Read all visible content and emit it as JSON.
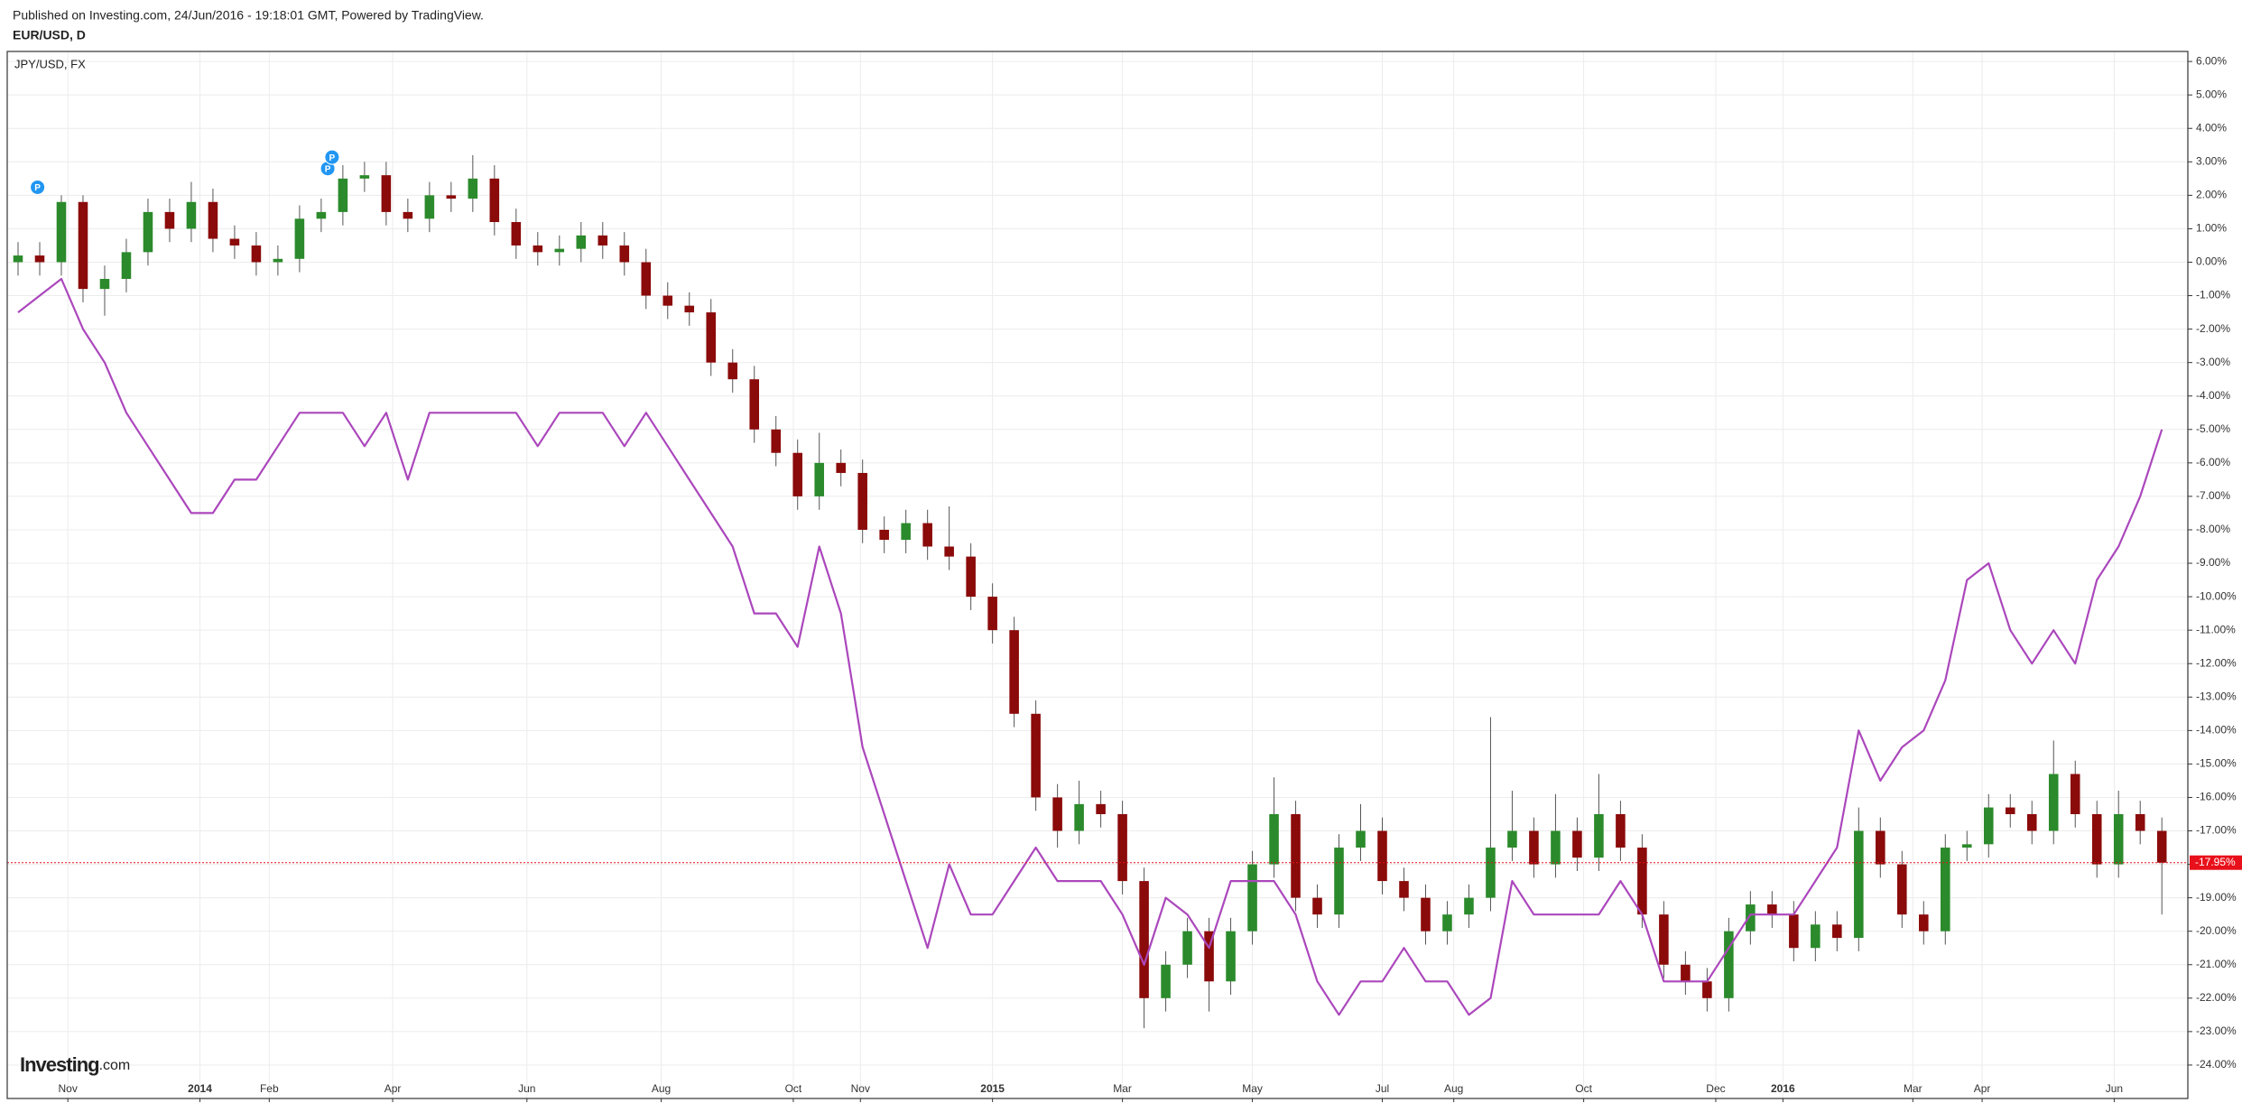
{
  "header": {
    "published": "Published on Investing.com, 24/Jun/2016 - 19:18:01 GMT, Powered by TradingView.",
    "symbol": "EUR/USD, D"
  },
  "logo": {
    "brand": "Investing",
    "suffix": ".com"
  },
  "chart_data": {
    "type": "candlestick",
    "open": [
      0.0,
      0.2,
      0.0,
      1.8,
      -0.8,
      -0.5,
      0.3,
      1.5,
      1.0,
      1.8,
      0.7,
      0.5,
      0.0,
      0.1,
      1.3,
      1.5,
      2.5,
      2.6,
      1.5,
      1.3,
      2.0,
      1.9,
      2.5,
      1.2,
      0.5,
      0.3,
      0.4,
      0.8,
      0.5,
      0.0,
      -1.0,
      -1.3,
      -1.5,
      -3.0,
      -3.5,
      -5.0,
      -5.7,
      -7.0,
      -6.0,
      -6.3,
      -8.0,
      -8.3,
      -7.8,
      -8.5,
      -8.8,
      -10.0,
      -11.0,
      -13.5,
      -16.0,
      -17.0,
      -16.2,
      -16.5,
      -18.5,
      -22.0,
      -21.0,
      -20.0,
      -21.5,
      -20.0,
      -18.0,
      -16.5,
      -19.0,
      -19.5,
      -17.5,
      -17.0,
      -18.5,
      -19.0,
      -20.0,
      -19.5,
      -19.0,
      -17.5,
      -17.0,
      -18.0,
      -17.0,
      -17.8,
      -16.5,
      -17.5,
      -19.5,
      -21.0,
      -21.5,
      -22.0,
      -20.0,
      -19.2,
      -19.5,
      -20.5,
      -19.8,
      -20.2,
      -17.0,
      -18.0,
      -19.5,
      -20.0,
      -17.5,
      -17.4,
      -16.3,
      -16.5,
      -17.0,
      -15.3,
      -16.5,
      -18.0,
      -16.5,
      -17.0
    ],
    "high": [
      0.6,
      0.6,
      2.0,
      2.0,
      -0.1,
      0.7,
      1.9,
      1.9,
      2.4,
      2.2,
      1.1,
      0.9,
      0.5,
      1.7,
      1.9,
      2.9,
      3.0,
      3.0,
      1.9,
      2.4,
      2.4,
      3.2,
      2.9,
      1.6,
      0.9,
      0.8,
      1.2,
      1.2,
      0.9,
      0.4,
      -0.6,
      -0.9,
      -1.1,
      -2.6,
      -3.1,
      -4.6,
      -5.3,
      -5.1,
      -5.6,
      -5.9,
      -7.6,
      -7.4,
      -7.4,
      -7.3,
      -8.4,
      -9.6,
      -10.6,
      -13.1,
      -15.6,
      -15.5,
      -15.8,
      -16.1,
      -18.1,
      -20.6,
      -19.6,
      -19.6,
      -19.6,
      -17.6,
      -15.4,
      -16.1,
      -18.6,
      -17.1,
      -16.2,
      -16.6,
      -18.1,
      -18.6,
      -19.1,
      -18.6,
      -13.6,
      -15.8,
      -16.6,
      -15.9,
      -16.6,
      -15.3,
      -16.1,
      -17.1,
      -19.1,
      -20.6,
      -21.1,
      -19.6,
      -18.8,
      -18.8,
      -19.1,
      -19.4,
      -19.4,
      -16.3,
      -16.6,
      -17.6,
      -19.1,
      -17.1,
      -17.0,
      -15.9,
      -15.9,
      -16.1,
      -14.3,
      -14.9,
      -16.1,
      -15.8,
      -16.1,
      -16.6
    ],
    "low": [
      -0.4,
      -0.4,
      -0.4,
      -1.2,
      -1.6,
      -0.9,
      -0.1,
      0.6,
      0.6,
      0.3,
      0.1,
      -0.4,
      -0.4,
      -0.3,
      0.9,
      1.1,
      2.1,
      1.1,
      0.9,
      0.9,
      1.5,
      1.5,
      0.8,
      0.1,
      -0.1,
      -0.1,
      0.0,
      0.1,
      -0.4,
      -1.4,
      -1.7,
      -1.9,
      -3.4,
      -3.9,
      -5.4,
      -6.1,
      -7.4,
      -7.4,
      -6.7,
      -8.4,
      -8.7,
      -8.7,
      -8.9,
      -9.2,
      -10.4,
      -11.4,
      -13.9,
      -16.4,
      -17.5,
      -17.4,
      -16.9,
      -18.9,
      -22.9,
      -22.4,
      -21.4,
      -22.4,
      -21.9,
      -20.4,
      -18.4,
      -19.4,
      -19.9,
      -19.9,
      -17.9,
      -18.9,
      -19.4,
      -20.4,
      -20.4,
      -19.9,
      -19.4,
      -17.9,
      -18.4,
      -18.4,
      -18.2,
      -18.2,
      -17.9,
      -19.9,
      -21.4,
      -21.9,
      -22.4,
      -22.4,
      -20.4,
      -19.9,
      -20.9,
      -20.9,
      -20.6,
      -20.6,
      -18.4,
      -19.9,
      -20.4,
      -20.4,
      -17.9,
      -17.8,
      -16.9,
      -17.4,
      -17.4,
      -16.9,
      -18.4,
      -18.4,
      -17.4,
      -19.5
    ],
    "close": [
      0.2,
      0.0,
      1.8,
      -0.8,
      -0.5,
      0.3,
      1.5,
      1.0,
      1.8,
      0.7,
      0.5,
      0.0,
      0.1,
      1.3,
      1.5,
      2.5,
      2.6,
      1.5,
      1.3,
      2.0,
      1.9,
      2.5,
      1.2,
      0.5,
      0.3,
      0.4,
      0.8,
      0.5,
      0.0,
      -1.0,
      -1.3,
      -1.5,
      -3.0,
      -3.5,
      -5.0,
      -5.7,
      -7.0,
      -6.0,
      -6.3,
      -8.0,
      -8.3,
      -7.8,
      -8.5,
      -8.8,
      -10.0,
      -11.0,
      -13.5,
      -16.0,
      -17.0,
      -16.2,
      -16.5,
      -18.5,
      -22.0,
      -21.0,
      -20.0,
      -21.5,
      -20.0,
      -18.0,
      -16.5,
      -19.0,
      -19.5,
      -17.5,
      -17.0,
      -18.5,
      -19.0,
      -20.0,
      -19.5,
      -19.0,
      -17.5,
      -17.0,
      -18.0,
      -17.0,
      -17.8,
      -16.5,
      -17.5,
      -19.5,
      -21.0,
      -21.5,
      -22.0,
      -20.0,
      -19.2,
      -19.5,
      -20.5,
      -19.8,
      -20.2,
      -17.0,
      -18.0,
      -19.5,
      -20.0,
      -17.5,
      -17.4,
      -16.3,
      -16.5,
      -17.0,
      -15.3,
      -16.5,
      -18.0,
      -16.5,
      -17.0,
      -17.95
    ],
    "up_color": "#2b8a2b",
    "down_color": "#8b0a0a",
    "series": [
      {
        "name": "JPY/USD, FX",
        "color": "#ab47bc",
        "type": "line",
        "values": [
          -1.5,
          -1.0,
          -0.5,
          -2.0,
          -3.0,
          -4.5,
          -5.5,
          -6.5,
          -7.5,
          -7.5,
          -6.5,
          -6.5,
          -5.5,
          -4.5,
          -4.5,
          -4.5,
          -5.5,
          -4.5,
          -6.5,
          -4.5,
          -4.5,
          -4.5,
          -4.5,
          -4.5,
          -5.5,
          -4.5,
          -4.5,
          -4.5,
          -5.5,
          -4.5,
          -5.5,
          -6.5,
          -7.5,
          -8.5,
          -10.5,
          -10.5,
          -11.5,
          -8.5,
          -10.5,
          -14.5,
          -16.5,
          -18.5,
          -20.5,
          -18.0,
          -19.5,
          -19.5,
          -18.5,
          -17.5,
          -18.5,
          -18.5,
          -18.5,
          -19.5,
          -21.0,
          -19.0,
          -19.5,
          -20.5,
          -18.5,
          -18.5,
          -18.5,
          -19.5,
          -21.5,
          -22.5,
          -21.5,
          -21.5,
          -20.5,
          -21.5,
          -21.5,
          -22.5,
          -22.0,
          -18.5,
          -19.5,
          -19.5,
          -19.5,
          -19.5,
          -18.5,
          -19.5,
          -21.5,
          -21.5,
          -21.5,
          -20.5,
          -19.5,
          -19.5,
          -19.5,
          -18.5,
          -17.5,
          -14.0,
          -15.5,
          -14.5,
          -14.0,
          -12.5,
          -9.5,
          -9.0,
          -11.0,
          -12.0,
          -11.0,
          -12.0,
          -9.5,
          -8.5,
          -7.0,
          -5.0
        ]
      }
    ],
    "last_price": {
      "value": -17.95,
      "label": "-17.95%",
      "color": "#e8101a"
    },
    "markers": [
      {
        "x": 1.4,
        "y": 2.24,
        "label": "P"
      },
      {
        "x": 14.8,
        "y": 2.8,
        "label": "P"
      },
      {
        "x": 15.0,
        "y": 3.14,
        "label": "P"
      }
    ],
    "marker_color": "#2196f3",
    "xlim": [
      0,
      100.7
    ],
    "xticks": [
      {
        "value": 2.8,
        "label": "Nov"
      },
      {
        "value": 8.9,
        "label": "2014"
      },
      {
        "value": 12.1,
        "label": "Feb"
      },
      {
        "value": 17.8,
        "label": "Apr"
      },
      {
        "value": 24.0,
        "label": "Jun"
      },
      {
        "value": 30.2,
        "label": "Aug"
      },
      {
        "value": 36.3,
        "label": "Oct"
      },
      {
        "value": 39.4,
        "label": "Nov"
      },
      {
        "value": 45.5,
        "label": "2015"
      },
      {
        "value": 51.5,
        "label": "Mar"
      },
      {
        "value": 57.5,
        "label": "May"
      },
      {
        "value": 63.5,
        "label": "Jul"
      },
      {
        "value": 66.8,
        "label": "Aug"
      },
      {
        "value": 72.8,
        "label": "Oct"
      },
      {
        "value": 78.9,
        "label": "Dec"
      },
      {
        "value": 82.0,
        "label": "2016"
      },
      {
        "value": 88.0,
        "label": "Mar"
      },
      {
        "value": 91.2,
        "label": "Apr"
      },
      {
        "value": 97.3,
        "label": "Jun"
      }
    ],
    "ylim": [
      -25,
      6.3
    ],
    "yticks": [
      {
        "value": 6,
        "label": "6.00%"
      },
      {
        "value": 5,
        "label": "5.00%"
      },
      {
        "value": 4,
        "label": "4.00%"
      },
      {
        "value": 3,
        "label": "3.00%"
      },
      {
        "value": 2,
        "label": "2.00%"
      },
      {
        "value": 1,
        "label": "1.00%"
      },
      {
        "value": 0,
        "label": "0.00%"
      },
      {
        "value": -1,
        "label": "-1.00%"
      },
      {
        "value": -2,
        "label": "-2.00%"
      },
      {
        "value": -3,
        "label": "-3.00%"
      },
      {
        "value": -4,
        "label": "-4.00%"
      },
      {
        "value": -5,
        "label": "-5.00%"
      },
      {
        "value": -6,
        "label": "-6.00%"
      },
      {
        "value": -7,
        "label": "-7.00%"
      },
      {
        "value": -8,
        "label": "-8.00%"
      },
      {
        "value": -9,
        "label": "-9.00%"
      },
      {
        "value": -10,
        "label": "-10.00%"
      },
      {
        "value": -11,
        "label": "-11.00%"
      },
      {
        "value": -12,
        "label": "-12.00%"
      },
      {
        "value": -13,
        "label": "-13.00%"
      },
      {
        "value": -14,
        "label": "-14.00%"
      },
      {
        "value": -15,
        "label": "-15.00%"
      },
      {
        "value": -16,
        "label": "-16.00%"
      },
      {
        "value": -17,
        "label": "-17.00%"
      },
      {
        "value": -18,
        "label": "-18.00%"
      },
      {
        "value": -19,
        "label": "-19.00%"
      },
      {
        "value": -20,
        "label": "-20.00%"
      },
      {
        "value": -21,
        "label": "-21.00%"
      },
      {
        "value": -22,
        "label": "-22.00%"
      },
      {
        "value": -23,
        "label": "-23.00%"
      },
      {
        "value": -24,
        "label": "-24.00%"
      }
    ],
    "grid": true
  }
}
